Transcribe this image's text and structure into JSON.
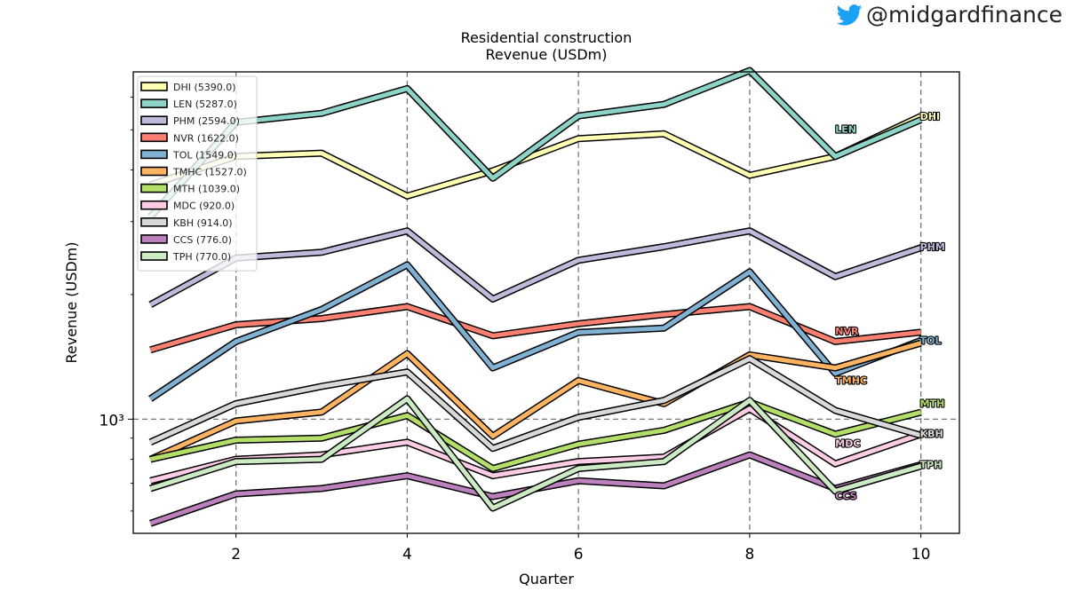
{
  "brand": {
    "handle": "@midgardfinance",
    "icon": "twitter-bird-icon",
    "icon_color": "#1da1f2"
  },
  "chart_data": {
    "type": "line",
    "title": "Residential construction",
    "subtitle": "Revenue (USDm)",
    "xlabel": "Quarter",
    "ylabel": "Revenue (USDm)",
    "yscale": "log",
    "xlim": [
      0.8,
      10.45
    ],
    "ylim": [
      530,
      6900
    ],
    "xticks": [
      2,
      4,
      6,
      8,
      10
    ],
    "xtick_labels": [
      "2",
      "4",
      "6",
      "8",
      "10"
    ],
    "yticks": [
      1000
    ],
    "ytick_labels": [
      "10³"
    ],
    "grid": "dashed, at major ticks",
    "legend_position": "upper-left",
    "x": [
      1,
      2,
      3,
      4,
      5,
      6,
      7,
      8,
      9,
      10
    ],
    "series": [
      {
        "name": "DHI",
        "legend": "DHI (5390.0)",
        "color": "#ffffb3",
        "values": [
          3680,
          4310,
          4390,
          3460,
          3980,
          4760,
          4890,
          3880,
          4310,
          5390
        ],
        "end_label": "DHI"
      },
      {
        "name": "LEN",
        "legend": "LEN (5287.0)",
        "color": "#8dd3c7",
        "values": [
          3080,
          5210,
          5480,
          6290,
          3820,
          5400,
          5760,
          6950,
          4310,
          5287
        ],
        "end_label": "LEN"
      },
      {
        "name": "PHM",
        "legend": "PHM (2594.0)",
        "color": "#bebada",
        "values": [
          1890,
          2450,
          2530,
          2850,
          1950,
          2420,
          2610,
          2850,
          2210,
          2594
        ],
        "end_label": "PHM"
      },
      {
        "name": "NVR",
        "legend": "NVR (1622.0)",
        "color": "#fb8072",
        "values": [
          1470,
          1690,
          1750,
          1870,
          1590,
          1700,
          1790,
          1870,
          1540,
          1622
        ],
        "end_label": "NVR"
      },
      {
        "name": "TOL",
        "legend": "TOL (1549.0)",
        "color": "#80b1d3",
        "values": [
          1120,
          1540,
          1840,
          2360,
          1330,
          1620,
          1660,
          2270,
          1290,
          1549
        ],
        "end_label": "TOL"
      },
      {
        "name": "TMHC",
        "legend": "TMHC (1527.0)",
        "color": "#fdb462",
        "values": [
          800,
          990,
          1040,
          1440,
          910,
          1240,
          1090,
          1430,
          1330,
          1527
        ],
        "end_label": "TMHC"
      },
      {
        "name": "MTH",
        "legend": "MTH (1039.0)",
        "color": "#b3de69",
        "values": [
          800,
          890,
          900,
          1020,
          760,
          870,
          940,
          1100,
          920,
          1039
        ],
        "end_label": "MTH"
      },
      {
        "name": "MDC",
        "legend": "MDC (920.0)",
        "color": "#fccde5",
        "values": [
          710,
          800,
          820,
          880,
          730,
          790,
          810,
          1060,
          780,
          920
        ],
        "end_label": "MDC"
      },
      {
        "name": "KBH",
        "legend": "KBH (914.0)",
        "color": "#d9d9d9",
        "values": [
          880,
          1090,
          1200,
          1300,
          850,
          1010,
          1110,
          1400,
          1050,
          914
        ],
        "end_label": "KBH"
      },
      {
        "name": "CCS",
        "legend": "CCS (776.0)",
        "color": "#bc80bd",
        "values": [
          560,
          660,
          680,
          730,
          650,
          710,
          690,
          820,
          680,
          776
        ],
        "end_label": "CCS"
      },
      {
        "name": "TPH",
        "legend": "TPH (770.0)",
        "color": "#ccebc5",
        "values": [
          680,
          790,
          800,
          1120,
          610,
          760,
          790,
          1110,
          670,
          770
        ],
        "end_label": "TPH"
      }
    ]
  }
}
